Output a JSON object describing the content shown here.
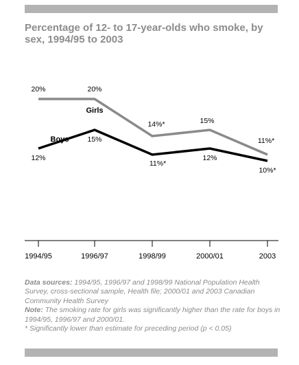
{
  "title": "Percentage of 12- to 17-year-olds who smoke, by sex, 1994/95 to 2003",
  "chart_data": {
    "type": "line",
    "title": "Percentage of 12- to 17-year-olds who smoke, by sex, 1994/95 to 2003",
    "categories": [
      "1994/95",
      "1996/97",
      "1998/99",
      "2000/01",
      "2003"
    ],
    "ylim": [
      0,
      25
    ],
    "grid": false,
    "series": [
      {
        "name": "Girls",
        "color": "#8a8a8a",
        "values": [
          20,
          20,
          14,
          15,
          11
        ],
        "labels": [
          "20%",
          "20%",
          "14%*",
          "15%",
          "11%*"
        ]
      },
      {
        "name": "Boys",
        "color": "#000000",
        "values": [
          12,
          15,
          11,
          12,
          10
        ],
        "labels": [
          "12%",
          "15%",
          "11%*",
          "12%",
          "10%*"
        ]
      }
    ]
  },
  "notes": {
    "data_sources_label": "Data sources:",
    "data_sources_text": " 1994/95, 1996/97 and 1998/99 National Population Health Survey, cross-sectional sample, Health file; 2000/01 and 2003 Canadian Community Health Survey",
    "note_label": "Note:",
    "note_text": " The smoking rate for girls was significantly higher than the rate for boys in 1994/95, 1996/97 and 2000/01.",
    "asterisk_text": "* Significantly lower than estimate for preceding period (p < 0.05)"
  }
}
